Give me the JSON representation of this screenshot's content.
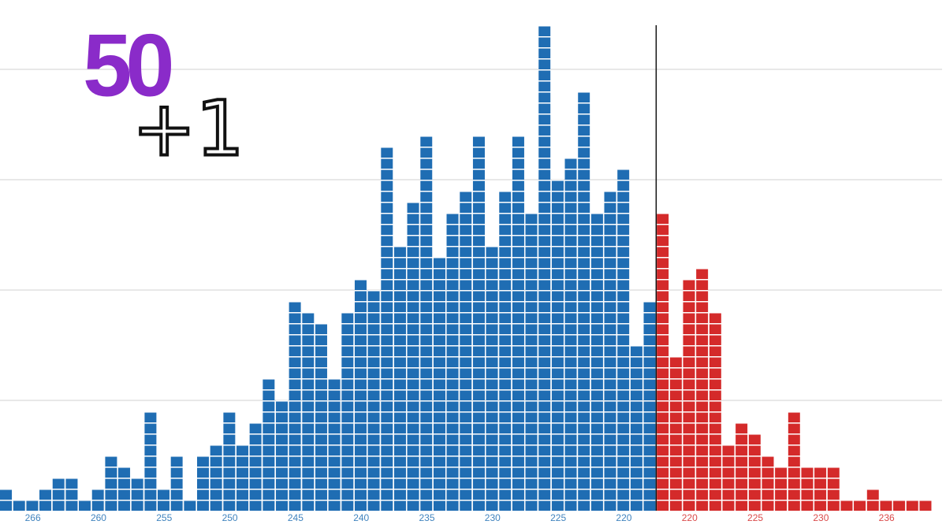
{
  "chart_data": {
    "type": "bar",
    "title": "50",
    "subtitle": "+1",
    "categories": [
      null,
      null,
      "266",
      null,
      null,
      null,
      null,
      "260",
      null,
      null,
      null,
      null,
      "255",
      null,
      null,
      null,
      null,
      "250",
      null,
      null,
      null,
      null,
      "245",
      null,
      null,
      null,
      null,
      "240",
      null,
      null,
      null,
      null,
      "235",
      null,
      null,
      null,
      null,
      "230",
      null,
      null,
      null,
      null,
      "225",
      null,
      null,
      null,
      null,
      "220",
      null,
      null,
      null,
      null,
      "220",
      null,
      null,
      null,
      null,
      "225",
      null,
      null,
      null,
      null,
      "230",
      null,
      null,
      null,
      null,
      "236",
      null,
      null,
      null
    ],
    "series": [
      {
        "color": "#1f6db3",
        "values": [
          2,
          1,
          1,
          2,
          3,
          3,
          1,
          2,
          5,
          4,
          3,
          9,
          2,
          5,
          1,
          5,
          6,
          9,
          6,
          8,
          12,
          10,
          19,
          18,
          17,
          12,
          18,
          21,
          20,
          33,
          24,
          28,
          34,
          23,
          27,
          29,
          34,
          24,
          29,
          34,
          27,
          44,
          30,
          32,
          38,
          27,
          29,
          31,
          15,
          19,
          null,
          null,
          null,
          null,
          null,
          null,
          null,
          null,
          null,
          null,
          null,
          null,
          null,
          null,
          null,
          null,
          null,
          null,
          null,
          null,
          null
        ]
      },
      {
        "color": "#d42a2a",
        "values": [
          null,
          null,
          null,
          null,
          null,
          null,
          null,
          null,
          null,
          null,
          null,
          null,
          null,
          null,
          null,
          null,
          null,
          null,
          null,
          null,
          null,
          null,
          null,
          null,
          null,
          null,
          null,
          null,
          null,
          null,
          null,
          null,
          null,
          null,
          null,
          null,
          null,
          null,
          null,
          null,
          null,
          null,
          null,
          null,
          null,
          null,
          null,
          null,
          null,
          null,
          27,
          14,
          21,
          22,
          18,
          6,
          8,
          7,
          5,
          4,
          9,
          4,
          4,
          4,
          1,
          1,
          2,
          1,
          1,
          1,
          1
        ]
      }
    ],
    "ylim": [
      0,
      44
    ],
    "yticks": [
      10,
      20,
      30,
      40
    ],
    "grid": true
  }
}
